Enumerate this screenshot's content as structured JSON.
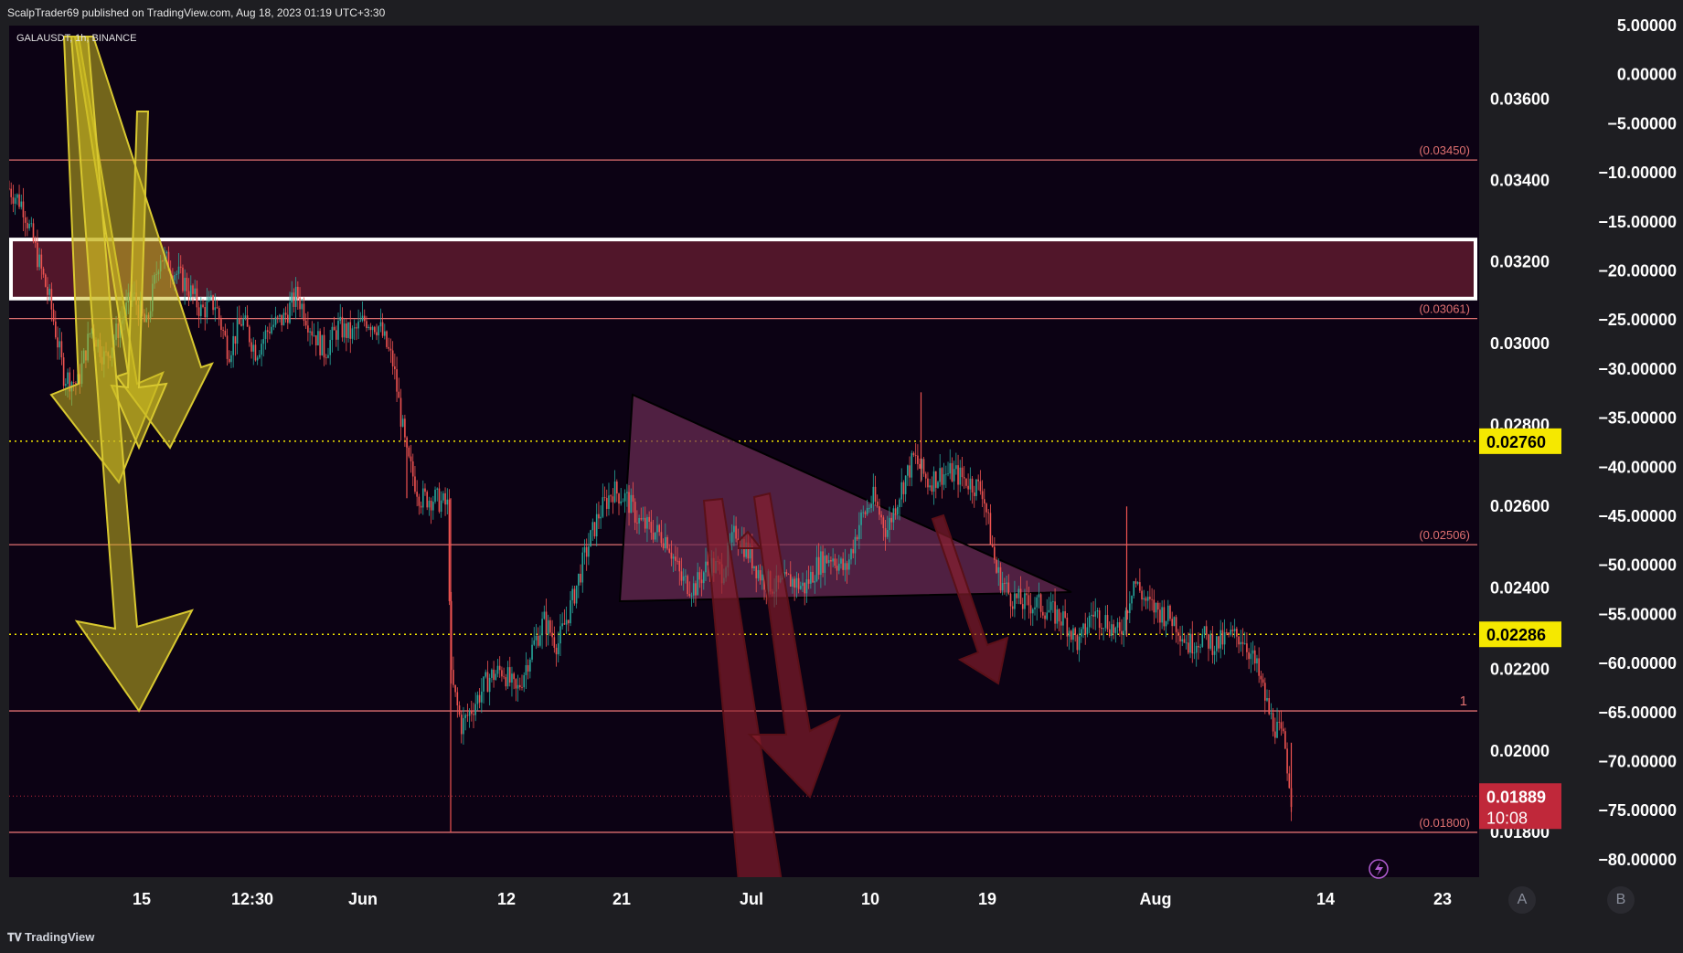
{
  "header": {
    "publish_info": "ScalpTrader69 published on TradingView.com, Aug 18, 2023 01:19 UTC+3:30"
  },
  "symbol": {
    "label": "GALAUSDT, 1h, BINANCE"
  },
  "footer": {
    "brand": "TradingView",
    "button_a": "A",
    "button_b": "B"
  },
  "colors": {
    "background": "#0c0214",
    "pane_background": "#1e1e22",
    "level_line": "#e07070",
    "dotted_line": "#f2e600",
    "zone_fill": "#5e1a2e",
    "zone_border": "#ffffff",
    "triangle_fill": "#6b2d55",
    "yellow_arrow": "#c8b820",
    "red_arrow": "#8a1f2c",
    "up_candle": "#26a69a",
    "down_candle": "#ef5350",
    "last_price_bg": "#c0283a",
    "dotted_label_bg": "#f5e800"
  },
  "chart_data": {
    "type": "candlestick",
    "symbol": "GALAUSDT",
    "interval": "1h",
    "exchange": "BINANCE",
    "x_tick_labels": [
      "15",
      "12:30",
      "Jun",
      "12",
      "21",
      "Jul",
      "10",
      "19",
      "Aug",
      "14",
      "23"
    ],
    "price_axis": {
      "ticks": [
        "0.03600",
        "0.03400",
        "0.03200",
        "0.03000",
        "0.02800",
        "0.02600",
        "0.02400",
        "0.02200",
        "0.02000",
        "0.01800"
      ],
      "range": [
        0.0169,
        0.0378
      ]
    },
    "percent_axis": {
      "ticks": [
        "5.00000",
        "0.00000",
        "−5.00000",
        "−10.00000",
        "−15.00000",
        "−20.00000",
        "−25.00000",
        "−30.00000",
        "−35.00000",
        "−40.00000",
        "−45.00000",
        "−50.00000",
        "−55.00000",
        "−60.00000",
        "−65.00000",
        "−70.00000",
        "−75.00000",
        "−80.00000"
      ]
    },
    "levels": [
      {
        "label": "(0.03450)",
        "price": 0.0345
      },
      {
        "label": "(0.03061)",
        "price": 0.03061
      },
      {
        "label": "(0.02506)",
        "price": 0.02506
      },
      {
        "label": "1",
        "price": 0.02098
      },
      {
        "label": "(0.01800)",
        "price": 0.018
      }
    ],
    "dotted_levels": [
      {
        "label": "0.02760",
        "price": 0.0276
      },
      {
        "label": "0.02286",
        "price": 0.02286
      }
    ],
    "resistance_zone": {
      "top": 0.03255,
      "bottom": 0.0311
    },
    "last_price": {
      "value": "0.01889",
      "countdown": "10:08",
      "price": 0.01889
    },
    "price_path": [
      [
        0.0,
        0.0338
      ],
      [
        0.01,
        0.0334
      ],
      [
        0.02,
        0.0322
      ],
      [
        0.03,
        0.031
      ],
      [
        0.04,
        0.0292
      ],
      [
        0.05,
        0.029
      ],
      [
        0.06,
        0.0304
      ],
      [
        0.07,
        0.0296
      ],
      [
        0.08,
        0.0304
      ],
      [
        0.09,
        0.0312
      ],
      [
        0.1,
        0.0304
      ],
      [
        0.11,
        0.0322
      ],
      [
        0.12,
        0.0318
      ],
      [
        0.13,
        0.0314
      ],
      [
        0.14,
        0.0308
      ],
      [
        0.15,
        0.031
      ],
      [
        0.16,
        0.0298
      ],
      [
        0.17,
        0.0306
      ],
      [
        0.18,
        0.0298
      ],
      [
        0.19,
        0.0304
      ],
      [
        0.2,
        0.0306
      ],
      [
        0.21,
        0.0312
      ],
      [
        0.22,
        0.0304
      ],
      [
        0.23,
        0.0298
      ],
      [
        0.24,
        0.0304
      ],
      [
        0.25,
        0.0302
      ],
      [
        0.26,
        0.0306
      ],
      [
        0.27,
        0.0304
      ],
      [
        0.28,
        0.0295
      ],
      [
        0.29,
        0.0272
      ],
      [
        0.3,
        0.0262
      ],
      [
        0.31,
        0.0262
      ],
      [
        0.32,
        0.026
      ],
      [
        0.322,
        0.0218
      ],
      [
        0.33,
        0.0206
      ],
      [
        0.34,
        0.0212
      ],
      [
        0.35,
        0.0218
      ],
      [
        0.36,
        0.022
      ],
      [
        0.37,
        0.0214
      ],
      [
        0.38,
        0.0224
      ],
      [
        0.39,
        0.0232
      ],
      [
        0.4,
        0.0226
      ],
      [
        0.41,
        0.0236
      ],
      [
        0.42,
        0.0248
      ],
      [
        0.43,
        0.0258
      ],
      [
        0.44,
        0.0264
      ],
      [
        0.45,
        0.0262
      ],
      [
        0.46,
        0.0256
      ],
      [
        0.47,
        0.0254
      ],
      [
        0.48,
        0.0252
      ],
      [
        0.49,
        0.0242
      ],
      [
        0.5,
        0.024
      ],
      [
        0.51,
        0.0246
      ],
      [
        0.52,
        0.0244
      ],
      [
        0.53,
        0.0254
      ],
      [
        0.54,
        0.0248
      ],
      [
        0.55,
        0.0242
      ],
      [
        0.56,
        0.024
      ],
      [
        0.57,
        0.0242
      ],
      [
        0.58,
        0.024
      ],
      [
        0.59,
        0.0246
      ],
      [
        0.6,
        0.0248
      ],
      [
        0.61,
        0.0244
      ],
      [
        0.62,
        0.0256
      ],
      [
        0.63,
        0.0262
      ],
      [
        0.64,
        0.0254
      ],
      [
        0.65,
        0.0264
      ],
      [
        0.66,
        0.0272
      ],
      [
        0.67,
        0.0266
      ],
      [
        0.68,
        0.0268
      ],
      [
        0.69,
        0.0268
      ],
      [
        0.7,
        0.0266
      ],
      [
        0.71,
        0.0264
      ],
      [
        0.72,
        0.0244
      ],
      [
        0.73,
        0.0238
      ],
      [
        0.74,
        0.0236
      ],
      [
        0.75,
        0.0236
      ],
      [
        0.76,
        0.0234
      ],
      [
        0.77,
        0.0232
      ],
      [
        0.78,
        0.0226
      ],
      [
        0.79,
        0.0234
      ],
      [
        0.8,
        0.0232
      ],
      [
        0.81,
        0.0228
      ],
      [
        0.82,
        0.0242
      ],
      [
        0.83,
        0.0236
      ],
      [
        0.84,
        0.0234
      ],
      [
        0.85,
        0.0232
      ],
      [
        0.86,
        0.0226
      ],
      [
        0.87,
        0.0228
      ],
      [
        0.88,
        0.0226
      ],
      [
        0.89,
        0.0228
      ],
      [
        0.9,
        0.0228
      ],
      [
        0.91,
        0.022
      ],
      [
        0.92,
        0.0208
      ],
      [
        0.93,
        0.0202
      ],
      [
        0.935,
        0.0189
      ]
    ]
  }
}
